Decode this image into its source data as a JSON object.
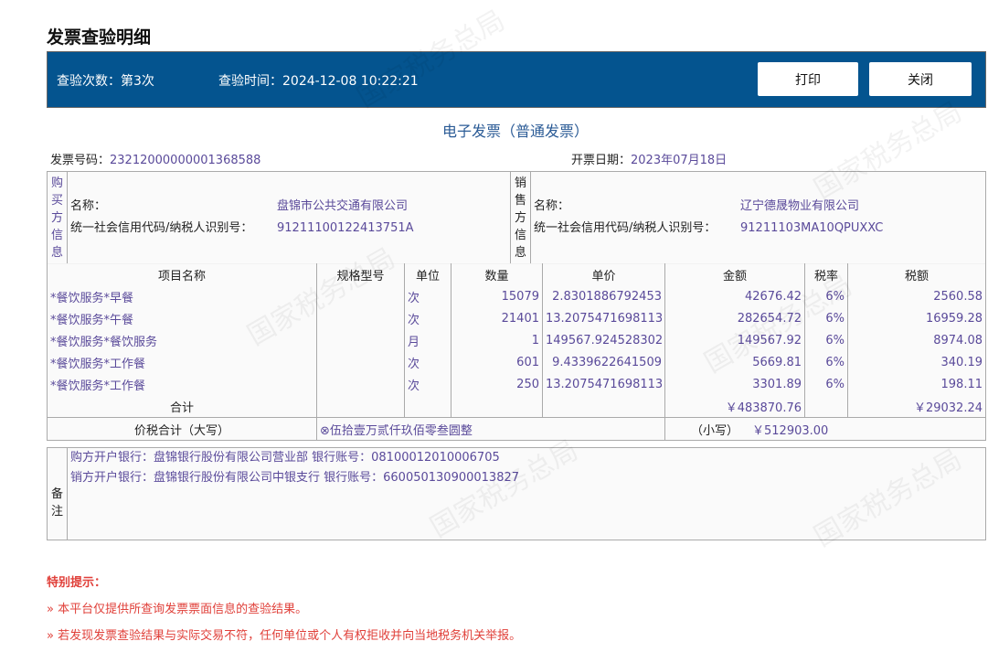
{
  "page_title": "发票查验明细",
  "header": {
    "check_count_label": "查验次数：",
    "check_count": "第3次",
    "check_time_label": "查验时间：",
    "check_time": "2024-12-08 10:22:21",
    "print_label": "打印",
    "close_label": "关闭",
    "bg_color": "#04548f"
  },
  "watermark": "国家税务总局",
  "invoice": {
    "title": "电子发票（普通发票）",
    "number_label": "发票号码：",
    "number": "23212000000001368588",
    "date_label": "开票日期：",
    "date": "2023年07月18日",
    "buyer": {
      "side_label": "购买方信息",
      "name_label": "名称：",
      "name": "盘锦市公共交通有限公司",
      "tax_id_label": "统一社会信用代码/纳税人识别号：",
      "tax_id": "91211100122413751A"
    },
    "seller": {
      "side_label": "销售方信息",
      "name_label": "名称：",
      "name": "辽宁德晟物业有限公司",
      "tax_id_label": "统一社会信用代码/纳税人识别号：",
      "tax_id": "91211103MA10QPUXXC"
    },
    "columns": [
      "项目名称",
      "规格型号",
      "单位",
      "数量",
      "单价",
      "金额",
      "税率",
      "税额"
    ],
    "items": [
      {
        "name": "*餐饮服务*早餐",
        "spec": "",
        "unit": "次",
        "qty": "15079",
        "price": "2.8301886792453",
        "amount": "42676.42",
        "rate": "6%",
        "tax": "2560.58"
      },
      {
        "name": "*餐饮服务*午餐",
        "spec": "",
        "unit": "次",
        "qty": "21401",
        "price": "13.2075471698113",
        "amount": "282654.72",
        "rate": "6%",
        "tax": "16959.28"
      },
      {
        "name": "*餐饮服务*餐饮服务",
        "spec": "",
        "unit": "月",
        "qty": "1",
        "price": "149567.924528302",
        "amount": "149567.92",
        "rate": "6%",
        "tax": "8974.08"
      },
      {
        "name": "*餐饮服务*工作餐",
        "spec": "",
        "unit": "次",
        "qty": "601",
        "price": "9.4339622641509",
        "amount": "5669.81",
        "rate": "6%",
        "tax": "340.19"
      },
      {
        "name": "*餐饮服务*工作餐",
        "spec": "",
        "unit": "次",
        "qty": "250",
        "price": "13.2075471698113",
        "amount": "3301.89",
        "rate": "6%",
        "tax": "198.11"
      }
    ],
    "total_label": "合计",
    "total_amount": "￥483870.76",
    "total_tax": "￥29032.24",
    "grand_label": "价税合计（大写）",
    "grand_words": "⊗伍拾壹万贰仟玖佰零叁圆整",
    "grand_small_label": "（小写）",
    "grand_small": "￥512903.00",
    "remarks_label": "备注",
    "remarks": [
      "购方开户银行：盘锦银行股份有限公司营业部 银行账号：08100012010006705",
      "销方开户银行：盘锦银行股份有限公司中银支行 银行账号：660050130900013827"
    ]
  },
  "notice": {
    "title": "特别提示：",
    "items": [
      "»  本平台仅提供所查询发票票面信息的查验结果。",
      "»  若发现发票查验结果与实际交易不符，任何单位或个人有权拒收并向当地税务机关举报。"
    ]
  }
}
